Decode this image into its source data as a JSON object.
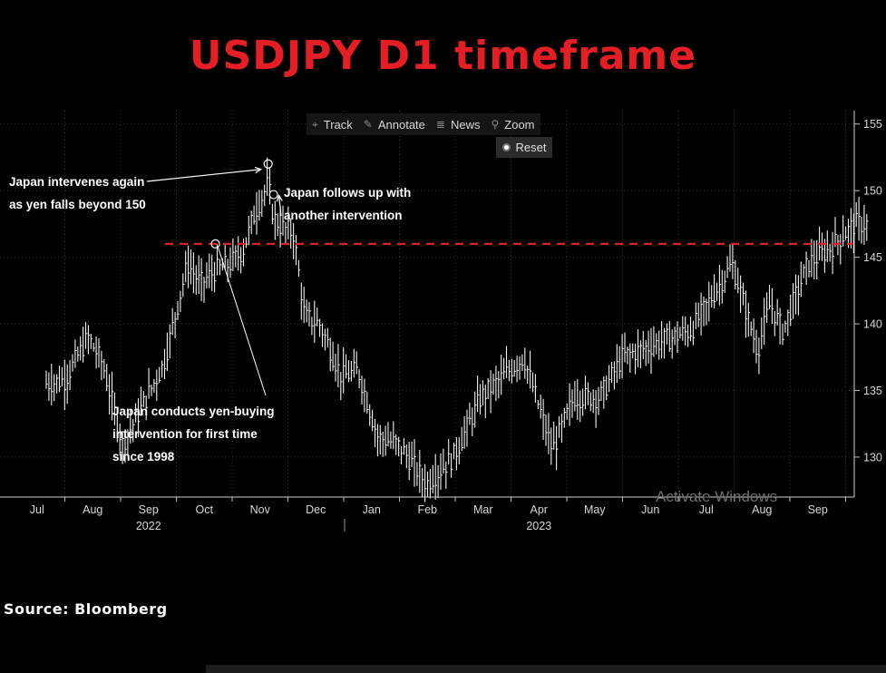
{
  "title": "USDJPY D1 timeframe",
  "toolbar": {
    "track": "Track",
    "annotate": "Annotate",
    "news": "News",
    "zoom": "Zoom",
    "reset": "Reset"
  },
  "annotations": {
    "intervene_again_1": "Japan intervenes again",
    "intervene_again_2": "as yen falls beyond 150",
    "follow_up_1": "Japan follows up with",
    "follow_up_2": "another intervention",
    "first_1": "Japan conducts yen-buying",
    "first_2": "intervention for first time",
    "first_3": "since 1998"
  },
  "watermark": "Activate Windows",
  "source": "Source: Bloomberg",
  "colors": {
    "title": "#e31e24",
    "reference_line": "#e31e24",
    "price": "#ffffff"
  },
  "chart_data": {
    "type": "line",
    "title": "USDJPY D1 timeframe",
    "y_axis_side": "right",
    "ylim": [
      127,
      156
    ],
    "yticks": [
      130,
      135,
      140,
      145,
      150,
      155
    ],
    "x_months": [
      "Jul",
      "Aug",
      "Sep",
      "Oct",
      "Nov",
      "Dec",
      "Jan",
      "Feb",
      "Mar",
      "Apr",
      "May",
      "Jun",
      "Jul",
      "Aug",
      "Sep"
    ],
    "x_years": [
      {
        "label": "2022",
        "month_index": 2
      },
      {
        "label": "2023",
        "month_index": 9
      }
    ],
    "reference_line": {
      "value": 146,
      "style": "dashed",
      "color": "#e31e24"
    },
    "series": [
      {
        "x": [
          "2022-06-21",
          "2022-07-01",
          "2022-07-14",
          "2022-07-22",
          "2022-08-02",
          "2022-08-10",
          "2022-08-25",
          "2022-09-07",
          "2022-09-14",
          "2022-09-22",
          "2022-09-30",
          "2022-10-07",
          "2022-10-14",
          "2022-10-21",
          "2022-10-24",
          "2022-10-28",
          "2022-11-04",
          "2022-11-10",
          "2022-11-18",
          "2022-11-30",
          "2022-12-09",
          "2022-12-20",
          "2022-12-30",
          "2023-01-03",
          "2023-01-16",
          "2023-01-31",
          "2023-02-14",
          "2023-03-08",
          "2023-03-24",
          "2023-04-05",
          "2023-04-19",
          "2023-05-01",
          "2023-05-19",
          "2023-06-08",
          "2023-06-30",
          "2023-07-14",
          "2023-07-21",
          "2023-07-28",
          "2023-08-11",
          "2023-08-22",
          "2023-09-06",
          "2023-09-13"
        ],
        "y": [
          135.5,
          135.8,
          139.0,
          137.0,
          131.0,
          133.0,
          137.0,
          144.5,
          143.0,
          144.0,
          144.5,
          145.5,
          148.5,
          150.5,
          148.0,
          147.3,
          146.8,
          140.5,
          140.0,
          136.0,
          136.5,
          131.5,
          131.0,
          130.5,
          128.0,
          130.0,
          134.5,
          137.5,
          130.5,
          134.5,
          134.5,
          137.5,
          138.5,
          139.5,
          144.5,
          138.0,
          141.5,
          139.5,
          144.5,
          145.5,
          147.5,
          147.5
        ]
      }
    ],
    "markers": [
      {
        "x": "2022-09-22",
        "y": 146,
        "label_ref": "first"
      },
      {
        "x": "2022-10-21",
        "y": 152,
        "label_ref": "intervene_again"
      },
      {
        "x": "2022-10-24",
        "y": 149.7,
        "label_ref": "follow_up"
      }
    ]
  }
}
